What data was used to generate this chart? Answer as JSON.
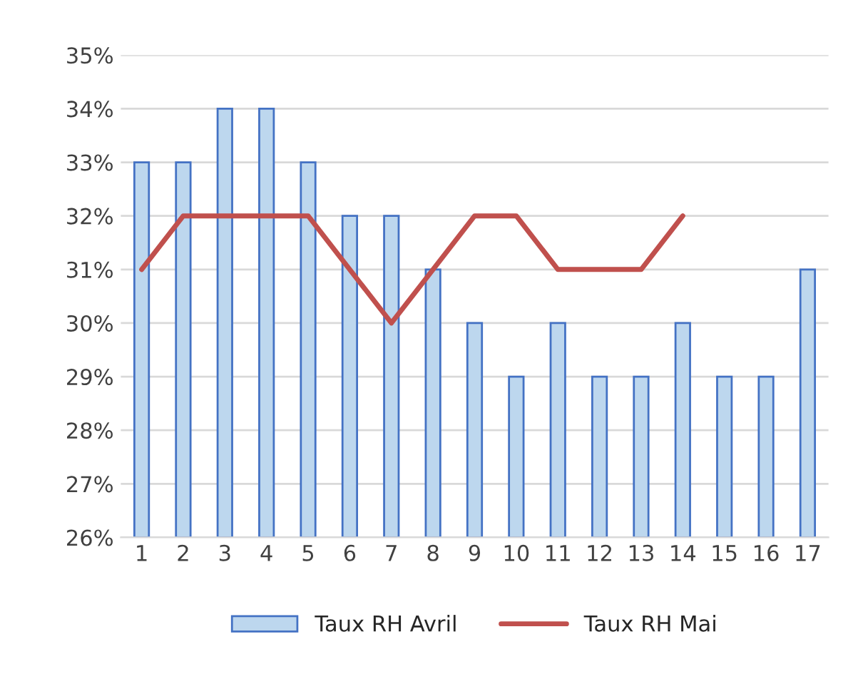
{
  "chart_data": {
    "type": "bar",
    "categories": [
      "1",
      "2",
      "3",
      "4",
      "5",
      "6",
      "7",
      "8",
      "9",
      "10",
      "11",
      "12",
      "13",
      "14",
      "15",
      "16",
      "17"
    ],
    "series": [
      {
        "name": "Taux RH Avril",
        "color": "#bdd7ee",
        "values": [
          33,
          33,
          34,
          34,
          33,
          32,
          32,
          31,
          30,
          29,
          30,
          29,
          29,
          30,
          29,
          29,
          31
        ]
      },
      {
        "name": "Taux RH Mai",
        "type": "line",
        "color": "#c0504d",
        "values": [
          31,
          32,
          32,
          32,
          32,
          31,
          30,
          31,
          32,
          32,
          31,
          31,
          31,
          32,
          null,
          null,
          null
        ]
      }
    ],
    "ylim": [
      26,
      35
    ],
    "yticks": [
      {
        "value": 26,
        "label": "26%"
      },
      {
        "value": 27,
        "label": "27%"
      },
      {
        "value": 28,
        "label": "28%"
      },
      {
        "value": 29,
        "label": "29%"
      },
      {
        "value": 30,
        "label": "30%"
      },
      {
        "value": 31,
        "label": "31%"
      },
      {
        "value": 32,
        "label": "32%"
      },
      {
        "value": 33,
        "label": "33%"
      },
      {
        "value": 34,
        "label": "34%"
      },
      {
        "value": 35,
        "label": "35%"
      }
    ],
    "grid": "y",
    "legend": "bottom",
    "marker": "none",
    "line_style": "solid"
  }
}
